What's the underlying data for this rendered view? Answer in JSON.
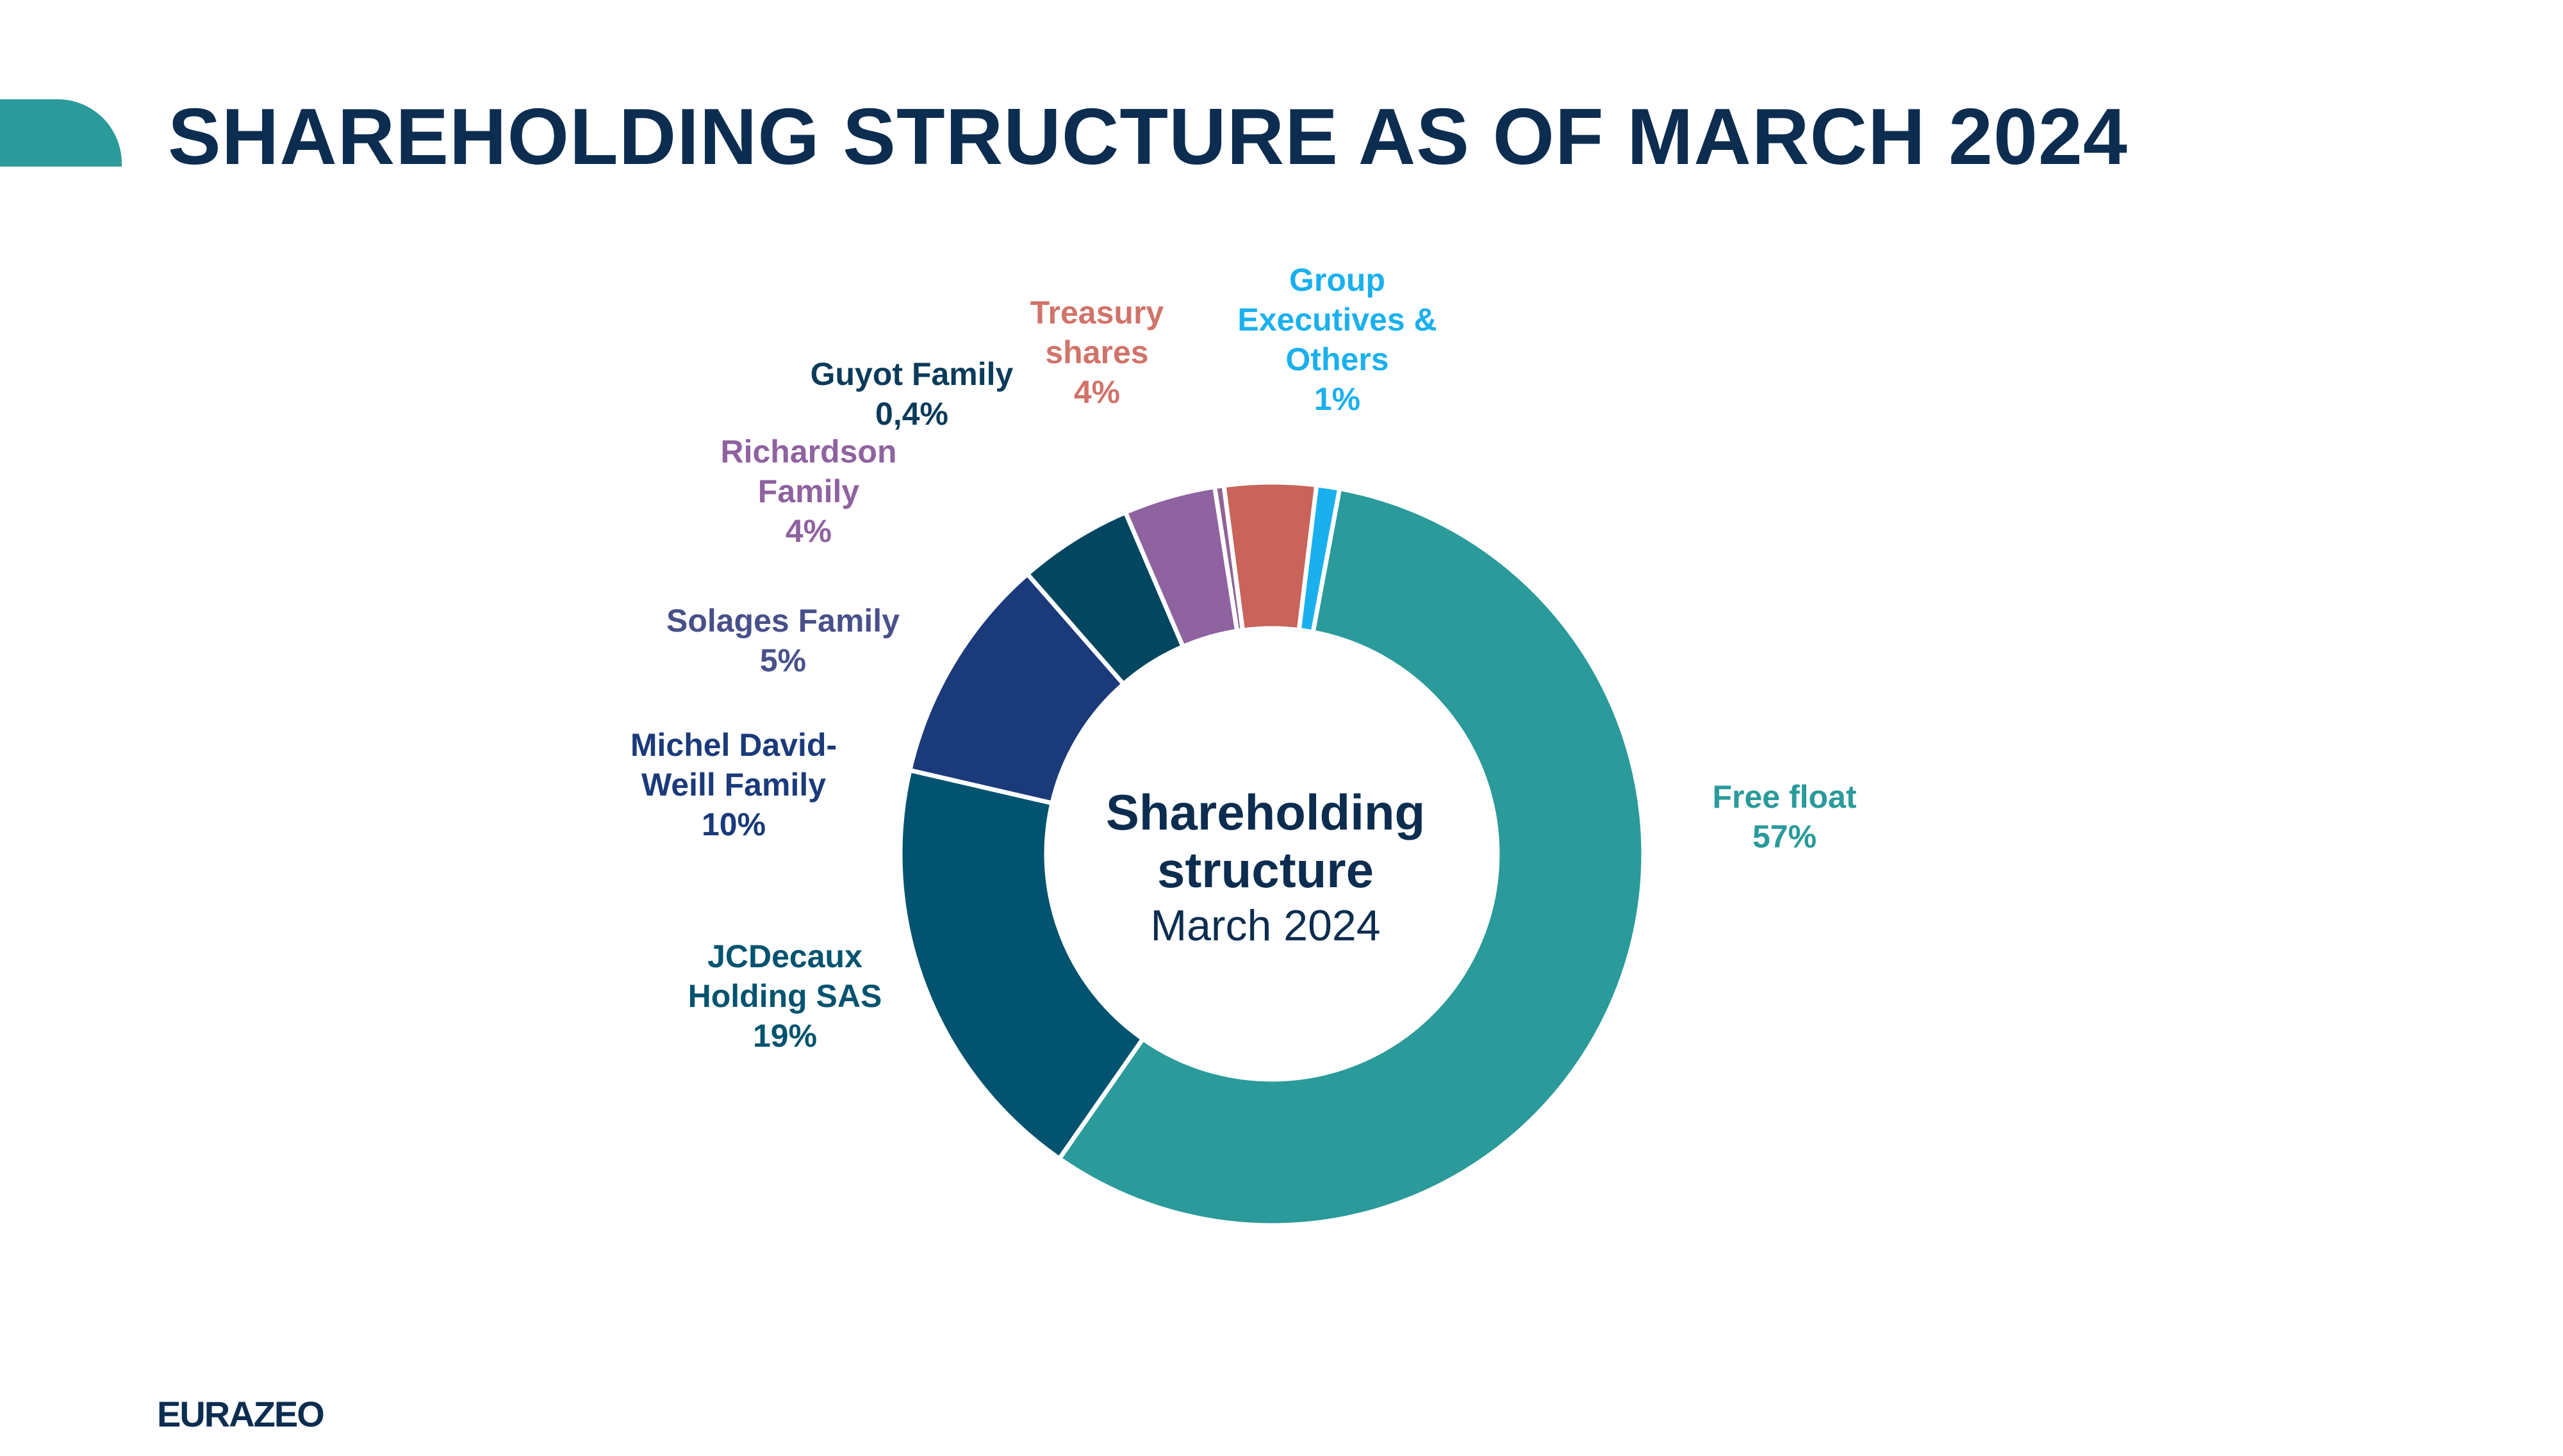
{
  "slide": {
    "title": "SHAREHOLDING STRUCTURE AS OF MARCH 2024",
    "logo_text": "EURAZEO",
    "accent_color": "#2a9a9b"
  },
  "chart_data": {
    "type": "pie",
    "variant": "donut",
    "center_title_lines": [
      "Shareholding",
      "structure"
    ],
    "center_subtitle": "March 2024",
    "unit": "%",
    "slices": [
      {
        "name_lines": [
          "Free float"
        ],
        "value": 57,
        "value_label": "57%",
        "color": "#2a9a9b"
      },
      {
        "name_lines": [
          "JCDecaux",
          "Holding SAS"
        ],
        "value": 19,
        "value_label": "19%",
        "color": "#02536f"
      },
      {
        "name_lines": [
          "Michel David-",
          "Weill Family"
        ],
        "value": 10,
        "value_label": "10%",
        "color": "#1a3a7a"
      },
      {
        "name_lines": [
          "Solages Family"
        ],
        "value": 5,
        "value_label": "5%",
        "color": "#024660",
        "label_color": "#48508a"
      },
      {
        "name_lines": [
          "Richardson",
          "Family"
        ],
        "value": 4,
        "value_label": "4%",
        "color": "#8f62a0"
      },
      {
        "name_lines": [
          "Guyot Family"
        ],
        "value": 0.4,
        "value_label": "0,4%",
        "color": "#8f6495",
        "label_color": "#0c3b5a"
      },
      {
        "name_lines": [
          "Treasury",
          "shares"
        ],
        "value": 4,
        "value_label": "4%",
        "color": "#c8645a",
        "label_color": "#d0736a"
      },
      {
        "name_lines": [
          "Group",
          "Executives &",
          "Others"
        ],
        "value": 1,
        "value_label": "1%",
        "color": "#1ab0ee"
      }
    ]
  }
}
